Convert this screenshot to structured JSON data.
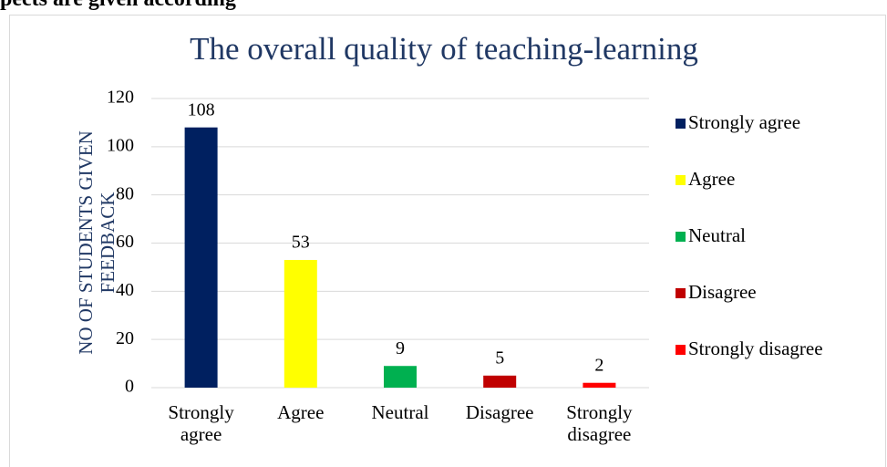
{
  "page_heading": "pects are given according",
  "chart_data": {
    "type": "bar",
    "title": "The overall quality of teaching-learning",
    "y_label": "NO OF STUDENTS GIVEN FEEDBACK",
    "categories": [
      "Strongly agree",
      "Agree",
      "Neutral",
      "Disagree",
      "Strongly disagree"
    ],
    "values": [
      108,
      53,
      9,
      5,
      2
    ],
    "colors": [
      "#002060",
      "#ffff00",
      "#00b050",
      "#c00000",
      "#ff0000"
    ],
    "ylim": [
      0,
      120
    ],
    "yticks": [
      0,
      20,
      40,
      60,
      80,
      100,
      120
    ],
    "grid": true,
    "legend": "right"
  }
}
